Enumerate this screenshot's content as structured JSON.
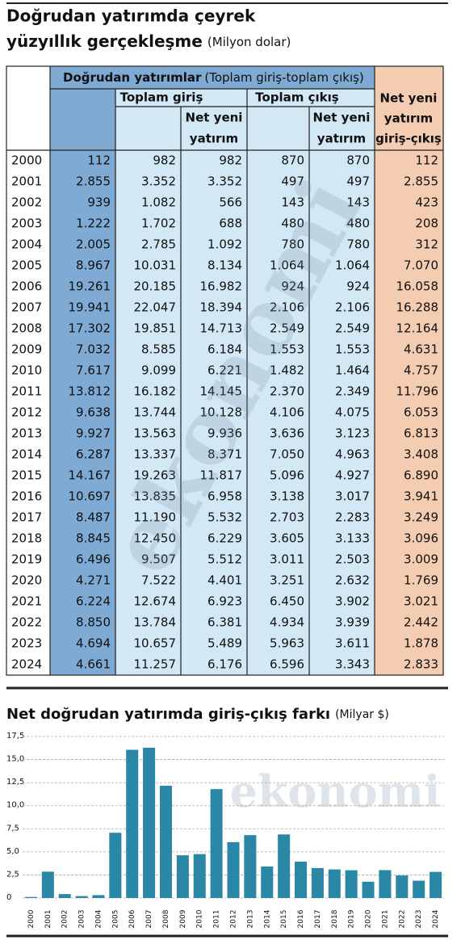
{
  "header": {
    "title_line1": "Doğrudan yatırımda çeyrek",
    "title_line2": "yüzyıllık gerçekleşme",
    "unit": "(Milyon dolar)"
  },
  "watermark": "ekonomi",
  "table": {
    "group": "Doğrudan yatırımlar",
    "group_note": "(Toplam giriş-toplam çıkış)",
    "inflow": "Toplam giriş",
    "outflow": "Toplam çıkış",
    "net_new_in": [
      "Net yeni",
      "yatırım"
    ],
    "net_new_out": [
      "Net yeni",
      "yatırım"
    ],
    "net": [
      "Net yeni",
      "yatırım",
      "giriş-çıkış"
    ],
    "rows": [
      [
        "2000",
        "112",
        "982",
        "982",
        "870",
        "870",
        "112"
      ],
      [
        "2001",
        "2.855",
        "3.352",
        "3.352",
        "497",
        "497",
        "2.855"
      ],
      [
        "2002",
        "939",
        "1.082",
        "566",
        "143",
        "143",
        "423"
      ],
      [
        "2003",
        "1.222",
        "1.702",
        "688",
        "480",
        "480",
        "208"
      ],
      [
        "2004",
        "2.005",
        "2.785",
        "1.092",
        "780",
        "780",
        "312"
      ],
      [
        "2005",
        "8.967",
        "10.031",
        "8.134",
        "1.064",
        "1.064",
        "7.070"
      ],
      [
        "2006",
        "19.261",
        "20.185",
        "16.982",
        "924",
        "924",
        "16.058"
      ],
      [
        "2007",
        "19.941",
        "22.047",
        "18.394",
        "2.106",
        "2.106",
        "16.288"
      ],
      [
        "2008",
        "17.302",
        "19.851",
        "14.713",
        "2.549",
        "2.549",
        "12.164"
      ],
      [
        "2009",
        "7.032",
        "8.585",
        "6.184",
        "1.553",
        "1.553",
        "4.631"
      ],
      [
        "2010",
        "7.617",
        "9.099",
        "6.221",
        "1.482",
        "1.464",
        "4.757"
      ],
      [
        "2011",
        "13.812",
        "16.182",
        "14.145",
        "2.370",
        "2.349",
        "11.796"
      ],
      [
        "2012",
        "9.638",
        "13.744",
        "10.128",
        "4.106",
        "4.075",
        "6.053"
      ],
      [
        "2013",
        "9.927",
        "13.563",
        "9.936",
        "3.636",
        "3.123",
        "6.813"
      ],
      [
        "2014",
        "6.287",
        "13.337",
        "8.371",
        "7.050",
        "4.963",
        "3.408"
      ],
      [
        "2015",
        "14.167",
        "19.263",
        "11.817",
        "5.096",
        "4.927",
        "6.890"
      ],
      [
        "2016",
        "10.697",
        "13.835",
        "6.958",
        "3.138",
        "3.017",
        "3.941"
      ],
      [
        "2017",
        "8.487",
        "11.190",
        "5.532",
        "2.703",
        "2.283",
        "3.249"
      ],
      [
        "2018",
        "8.845",
        "12.450",
        "6.229",
        "3.605",
        "3.133",
        "3.096"
      ],
      [
        "2019",
        "6.496",
        "9.507",
        "5.512",
        "3.011",
        "2.503",
        "3.009"
      ],
      [
        "2020",
        "4.271",
        "7.522",
        "4.401",
        "3.251",
        "2.632",
        "1.769"
      ],
      [
        "2021",
        "6.224",
        "12.674",
        "6.923",
        "6.450",
        "3.902",
        "3.021"
      ],
      [
        "2022",
        "8.850",
        "13.784",
        "6.381",
        "4.934",
        "3.939",
        "2.442"
      ],
      [
        "2023",
        "4.694",
        "10.657",
        "5.489",
        "5.963",
        "3.611",
        "1.878"
      ],
      [
        "2024",
        "4.661",
        "11.257",
        "6.176",
        "6.596",
        "3.343",
        "2.833"
      ]
    ]
  },
  "chart_data": {
    "type": "bar",
    "title": "Net doğrudan yatırımda giriş-çıkış farkı",
    "unit": "(Milyar $)",
    "categories": [
      "2000",
      "2001",
      "2002",
      "2003",
      "2004",
      "2005",
      "2006",
      "2007",
      "2008",
      "2009",
      "2010",
      "2011",
      "2012",
      "2013",
      "2014",
      "2015",
      "2016",
      "2017",
      "2018",
      "2019",
      "2020",
      "2021",
      "2022",
      "2023",
      "2024"
    ],
    "values": [
      0.112,
      2.855,
      0.423,
      0.208,
      0.312,
      7.07,
      16.058,
      16.288,
      12.164,
      4.631,
      4.757,
      11.796,
      6.053,
      6.813,
      3.408,
      6.89,
      3.941,
      3.249,
      3.096,
      3.009,
      1.769,
      3.021,
      2.442,
      1.878,
      2.833
    ],
    "color": "#2b87a6",
    "ylim": [
      0,
      17.5
    ],
    "yticks": [
      0,
      {
        "value": 2.5,
        "label": "2,5"
      },
      {
        "value": 5,
        "label": "5,0"
      },
      {
        "value": 7.5,
        "label": "7,5"
      },
      {
        "value": 10,
        "label": "10,0"
      },
      {
        "value": 12.5,
        "label": "12,5"
      },
      {
        "value": 15,
        "label": "15,0"
      },
      {
        "value": 17.5,
        "label": "17,5"
      }
    ],
    "grid": true
  }
}
